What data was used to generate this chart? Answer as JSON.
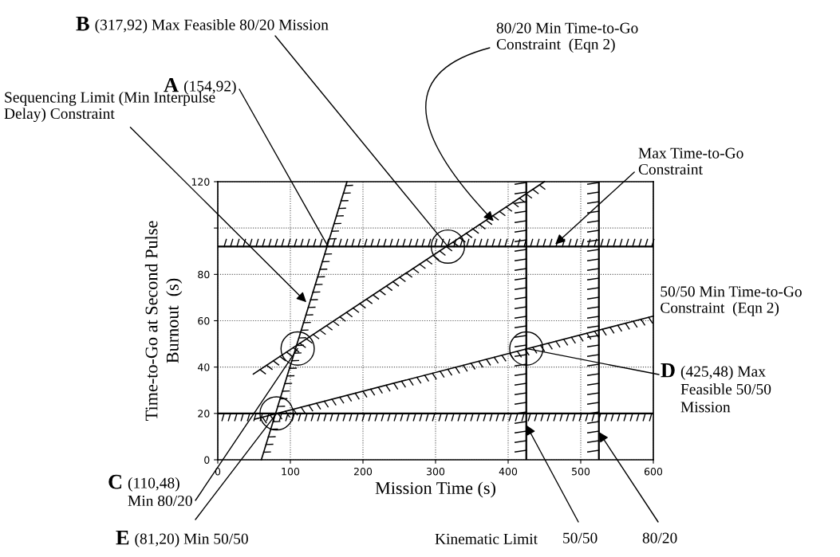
{
  "chart_data": {
    "type": "line",
    "xlabel": "Mission Time (s)",
    "ylabel": "Time-to-Go at Second Pulse\nBurnout  (s)",
    "xlim": [
      0,
      600
    ],
    "ylim": [
      0,
      120
    ],
    "xticks": [
      0,
      100,
      200,
      300,
      400,
      500,
      600
    ],
    "yticks": [
      0,
      20,
      40,
      60,
      80,
      {
        "value": 100,
        "label": null
      },
      120
    ],
    "grid": true,
    "legend": false,
    "marker": "none",
    "line_style": "solid",
    "series": [
      {
        "name": "Sequencing Limit (Min Interpulse\nDelay) Constraint",
        "color": "#000000",
        "x": [
          60,
          178
        ],
        "values": [
          0,
          120
        ]
      },
      {
        "name": "80/20 Min Time-to-Go\nConstraint  (Eqn 2)",
        "color": "#000000",
        "x": [
          49,
          450
        ],
        "values": [
          37,
          120
        ]
      },
      {
        "name": "50/50 Min Time-to-Go\nConstraint  (Eqn 2)",
        "color": "#000000",
        "x": [
          51,
          600
        ],
        "values": [
          17.5,
          62
        ]
      },
      {
        "type": "scatter",
        "marker": "circle",
        "color": "#000000",
        "x": [
          317,
          110,
          425,
          81
        ],
        "values": [
          92,
          48,
          48,
          20
        ]
      }
    ],
    "ref_lines": [
      {
        "axis": "y",
        "value": 92,
        "label": "Max Time-to-Go\nConstraint",
        "color": "#000000"
      },
      {
        "axis": "y",
        "value": 20,
        "label": null,
        "color": "#000000"
      },
      {
        "axis": "x",
        "value": 425,
        "label": null,
        "color": "#000000"
      },
      {
        "axis": "x",
        "value": 525,
        "label": null,
        "color": "#000000"
      }
    ],
    "annotations": [
      {
        "text": "A (154,92)",
        "x": 152,
        "y": 92
      },
      {
        "text": "B (317,92) Max Feasible 80/20 Mission",
        "x": 317,
        "y": 92
      },
      {
        "text": "C (110,48)\nMin 80/20",
        "x": 110,
        "y": 48
      },
      {
        "text": "D (425,48) Max\nFeasible 50/50\nMission",
        "x": 425,
        "y": 48
      },
      {
        "text": "E (81,20) Min 50/50",
        "x": 81,
        "y": 20
      },
      "Kinematic Limit",
      {
        "text": "50/50",
        "x": 425,
        "y": 15
      },
      {
        "text": "80/20",
        "x": 525,
        "y": 12
      }
    ]
  }
}
